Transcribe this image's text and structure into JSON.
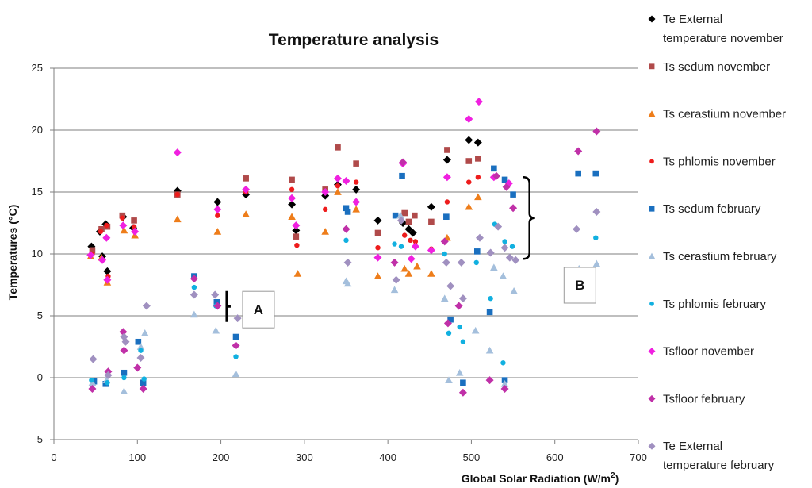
{
  "chart_data": {
    "type": "scatter",
    "title": "Temperature analysis",
    "xlabel": "Global Solar Radiation (W/m2)",
    "xlabel_main": "Global Solar Radiation (W/m",
    "xlabel_sup": "2",
    "xlabel_end": ")",
    "ylabel": "Temperatures (°C)",
    "xlim": [
      0,
      700
    ],
    "ylim": [
      -5,
      25
    ],
    "xticks": [
      "0",
      "100",
      "200",
      "300",
      "400",
      "500",
      "600",
      "700"
    ],
    "yticks": [
      "-5",
      "0",
      "5",
      "10",
      "15",
      "20",
      "25"
    ],
    "grid": "horizontal",
    "legend_position": "right",
    "series": [
      {
        "name": "Te External temperature november",
        "legend_lines": [
          "Te External",
          "temperature november"
        ],
        "marker": "diamond",
        "color": "#000000",
        "points": [
          [
            45,
            10.6
          ],
          [
            55,
            11.8
          ],
          [
            58,
            9.8
          ],
          [
            62,
            12.4
          ],
          [
            64,
            8.6
          ],
          [
            83,
            13.0
          ],
          [
            95,
            12.1
          ],
          [
            148,
            15.1
          ],
          [
            196,
            14.2
          ],
          [
            230,
            14.8
          ],
          [
            285,
            14.0
          ],
          [
            290,
            11.9
          ],
          [
            325,
            14.7
          ],
          [
            340,
            15.6
          ],
          [
            362,
            15.2
          ],
          [
            388,
            12.7
          ],
          [
            418,
            12.5
          ],
          [
            425,
            12.0
          ],
          [
            430,
            11.7
          ],
          [
            452,
            13.8
          ],
          [
            471,
            17.6
          ],
          [
            497,
            19.2
          ],
          [
            508,
            19.0
          ]
        ]
      },
      {
        "name": "Ts sedum november",
        "legend_lines": [
          "Ts sedum november"
        ],
        "marker": "square",
        "color": "#b04a4a",
        "points": [
          [
            46,
            10.3
          ],
          [
            57,
            12.0
          ],
          [
            64,
            12.2
          ],
          [
            82,
            13.1
          ],
          [
            96,
            12.7
          ],
          [
            148,
            14.8
          ],
          [
            230,
            16.1
          ],
          [
            285,
            16.0
          ],
          [
            290,
            11.4
          ],
          [
            325,
            15.2
          ],
          [
            340,
            18.6
          ],
          [
            362,
            17.3
          ],
          [
            388,
            11.7
          ],
          [
            420,
            13.3
          ],
          [
            425,
            12.6
          ],
          [
            432,
            13.1
          ],
          [
            452,
            12.6
          ],
          [
            471,
            18.4
          ],
          [
            497,
            17.5
          ],
          [
            508,
            17.7
          ]
        ]
      },
      {
        "name": "Ts cerastium november",
        "legend_lines": [
          "Ts cerastium november"
        ],
        "marker": "triangle",
        "color": "#ee7d1a",
        "points": [
          [
            44,
            9.8
          ],
          [
            57,
            9.7
          ],
          [
            64,
            7.7
          ],
          [
            84,
            11.9
          ],
          [
            97,
            11.5
          ],
          [
            148,
            12.8
          ],
          [
            196,
            11.8
          ],
          [
            230,
            13.2
          ],
          [
            285,
            13.0
          ],
          [
            292,
            8.4
          ],
          [
            325,
            11.8
          ],
          [
            340,
            15.0
          ],
          [
            362,
            13.6
          ],
          [
            388,
            8.2
          ],
          [
            420,
            8.8
          ],
          [
            425,
            8.4
          ],
          [
            435,
            9.0
          ],
          [
            452,
            8.4
          ],
          [
            471,
            11.3
          ],
          [
            497,
            13.8
          ],
          [
            508,
            14.6
          ]
        ]
      },
      {
        "name": "Ts phlomis november",
        "legend_lines": [
          "Ts phlomis november"
        ],
        "marker": "circle",
        "color": "#ee1c1c",
        "points": [
          [
            46,
            10.0
          ],
          [
            56,
            11.8
          ],
          [
            63,
            12.3
          ],
          [
            65,
            8.2
          ],
          [
            82,
            12.9
          ],
          [
            96,
            12.2
          ],
          [
            148,
            14.8
          ],
          [
            196,
            13.1
          ],
          [
            230,
            15.0
          ],
          [
            285,
            15.2
          ],
          [
            291,
            10.7
          ],
          [
            325,
            13.6
          ],
          [
            340,
            15.5
          ],
          [
            362,
            15.8
          ],
          [
            388,
            10.5
          ],
          [
            420,
            11.5
          ],
          [
            427,
            11.1
          ],
          [
            433,
            11.0
          ],
          [
            452,
            10.4
          ],
          [
            471,
            14.2
          ],
          [
            497,
            15.8
          ],
          [
            508,
            16.2
          ]
        ]
      },
      {
        "name": "Ts sedum february",
        "legend_lines": [
          "Ts sedum february"
        ],
        "marker": "square",
        "color": "#1a6fbf",
        "points": [
          [
            48,
            -0.3
          ],
          [
            62,
            -0.5
          ],
          [
            84,
            0.4
          ],
          [
            101,
            2.9
          ],
          [
            107,
            -0.4
          ],
          [
            168,
            8.2
          ],
          [
            195,
            6.1
          ],
          [
            218,
            3.3
          ],
          [
            350,
            13.7
          ],
          [
            352,
            13.4
          ],
          [
            409,
            13.1
          ],
          [
            417,
            16.3
          ],
          [
            470,
            13.0
          ],
          [
            475,
            4.7
          ],
          [
            490,
            -0.4
          ],
          [
            507,
            10.2
          ],
          [
            522,
            5.3
          ],
          [
            527,
            16.9
          ],
          [
            540,
            -0.2
          ],
          [
            540,
            16.0
          ],
          [
            550,
            14.8
          ],
          [
            628,
            16.5
          ],
          [
            649,
            16.5
          ]
        ]
      },
      {
        "name": "Ts cerastium february",
        "legend_lines": [
          "Ts cerastium february"
        ],
        "marker": "triangle",
        "color": "#a4bfdc",
        "points": [
          [
            46,
            -0.4
          ],
          [
            63,
            -0.2
          ],
          [
            84,
            -1.1
          ],
          [
            104,
            2.5
          ],
          [
            109,
            3.6
          ],
          [
            168,
            5.1
          ],
          [
            194,
            3.8
          ],
          [
            218,
            0.3
          ],
          [
            350,
            7.8
          ],
          [
            352,
            7.6
          ],
          [
            408,
            7.1
          ],
          [
            415,
            13.1
          ],
          [
            468,
            6.4
          ],
          [
            473,
            -0.2
          ],
          [
            486,
            0.4
          ],
          [
            505,
            3.8
          ],
          [
            522,
            2.2
          ],
          [
            527,
            8.9
          ],
          [
            538,
            8.2
          ],
          [
            540,
            -0.5
          ],
          [
            551,
            7.0
          ],
          [
            629,
            8.8
          ],
          [
            650,
            9.2
          ]
        ]
      },
      {
        "name": "Ts phlomis february",
        "legend_lines": [
          "Ts phlomis february"
        ],
        "marker": "circle",
        "color": "#11b0e0",
        "points": [
          [
            45,
            -0.2
          ],
          [
            64,
            -0.4
          ],
          [
            84,
            0.0
          ],
          [
            104,
            2.2
          ],
          [
            108,
            -0.1
          ],
          [
            168,
            7.3
          ],
          [
            194,
            5.8
          ],
          [
            218,
            1.7
          ],
          [
            350,
            11.1
          ],
          [
            408,
            10.8
          ],
          [
            416,
            10.6
          ],
          [
            468,
            10.0
          ],
          [
            473,
            3.6
          ],
          [
            486,
            4.1
          ],
          [
            490,
            2.9
          ],
          [
            506,
            9.3
          ],
          [
            523,
            6.4
          ],
          [
            528,
            12.4
          ],
          [
            538,
            1.2
          ],
          [
            540,
            11.0
          ],
          [
            549,
            10.6
          ],
          [
            649,
            11.3
          ]
        ]
      },
      {
        "name": "Tsfloor november",
        "legend_lines": [
          "Tsfloor november"
        ],
        "marker": "diamond",
        "color": "#f020e0",
        "points": [
          [
            44,
            9.9
          ],
          [
            58,
            9.5
          ],
          [
            63,
            11.3
          ],
          [
            64,
            7.9
          ],
          [
            83,
            12.3
          ],
          [
            97,
            11.8
          ],
          [
            148,
            18.2
          ],
          [
            196,
            13.6
          ],
          [
            230,
            15.2
          ],
          [
            285,
            14.5
          ],
          [
            290,
            12.3
          ],
          [
            325,
            15.0
          ],
          [
            340,
            16.1
          ],
          [
            350,
            15.9
          ],
          [
            362,
            14.2
          ],
          [
            388,
            9.7
          ],
          [
            418,
            17.3
          ],
          [
            428,
            9.6
          ],
          [
            433,
            10.6
          ],
          [
            452,
            10.3
          ],
          [
            471,
            16.2
          ],
          [
            497,
            20.9
          ],
          [
            509,
            22.3
          ],
          [
            527,
            16.2
          ],
          [
            545,
            15.7
          ]
        ]
      },
      {
        "name": "Tsfloor february",
        "legend_lines": [
          "Tsfloor february"
        ],
        "marker": "diamond",
        "color": "#c030a8",
        "points": [
          [
            46,
            -0.9
          ],
          [
            65,
            0.5
          ],
          [
            83,
            3.7
          ],
          [
            84,
            2.2
          ],
          [
            100,
            0.8
          ],
          [
            107,
            -0.9
          ],
          [
            168,
            8.0
          ],
          [
            196,
            5.8
          ],
          [
            218,
            2.6
          ],
          [
            350,
            12.0
          ],
          [
            408,
            9.3
          ],
          [
            418,
            17.4
          ],
          [
            472,
            4.4
          ],
          [
            485,
            5.8
          ],
          [
            490,
            -1.2
          ],
          [
            468,
            11.0
          ],
          [
            522,
            -0.2
          ],
          [
            530,
            16.3
          ],
          [
            540,
            -0.9
          ],
          [
            542,
            15.4
          ],
          [
            550,
            13.7
          ],
          [
            628,
            18.3
          ],
          [
            650,
            19.9
          ]
        ]
      },
      {
        "name": "Te External temperature february",
        "legend_lines": [
          "Te External",
          "temperature february"
        ],
        "marker": "diamond",
        "color": "#a090c0",
        "points": [
          [
            47,
            1.5
          ],
          [
            65,
            0.2
          ],
          [
            84,
            3.3
          ],
          [
            86,
            2.9
          ],
          [
            104,
            1.6
          ],
          [
            111,
            5.8
          ],
          [
            168,
            6.7
          ],
          [
            193,
            6.7
          ],
          [
            220,
            4.8
          ],
          [
            352,
            9.3
          ],
          [
            410,
            7.9
          ],
          [
            416,
            12.7
          ],
          [
            470,
            9.3
          ],
          [
            475,
            7.4
          ],
          [
            488,
            9.3
          ],
          [
            490,
            6.4
          ],
          [
            510,
            11.3
          ],
          [
            523,
            10.1
          ],
          [
            532,
            12.2
          ],
          [
            540,
            10.5
          ],
          [
            546,
            9.7
          ],
          [
            553,
            9.5
          ],
          [
            626,
            12.0
          ],
          [
            650,
            13.4
          ]
        ]
      }
    ],
    "annotations": [
      {
        "label": "A",
        "bracket_x": 207,
        "bracket_y": [
          4.5,
          7.0
        ],
        "box_x": 245,
        "box_y": 5.5
      },
      {
        "label": "B",
        "bracket_x": 562,
        "bracket_y": [
          9.6,
          16.2
        ],
        "box_x": 630,
        "box_y": 7.5
      }
    ]
  }
}
